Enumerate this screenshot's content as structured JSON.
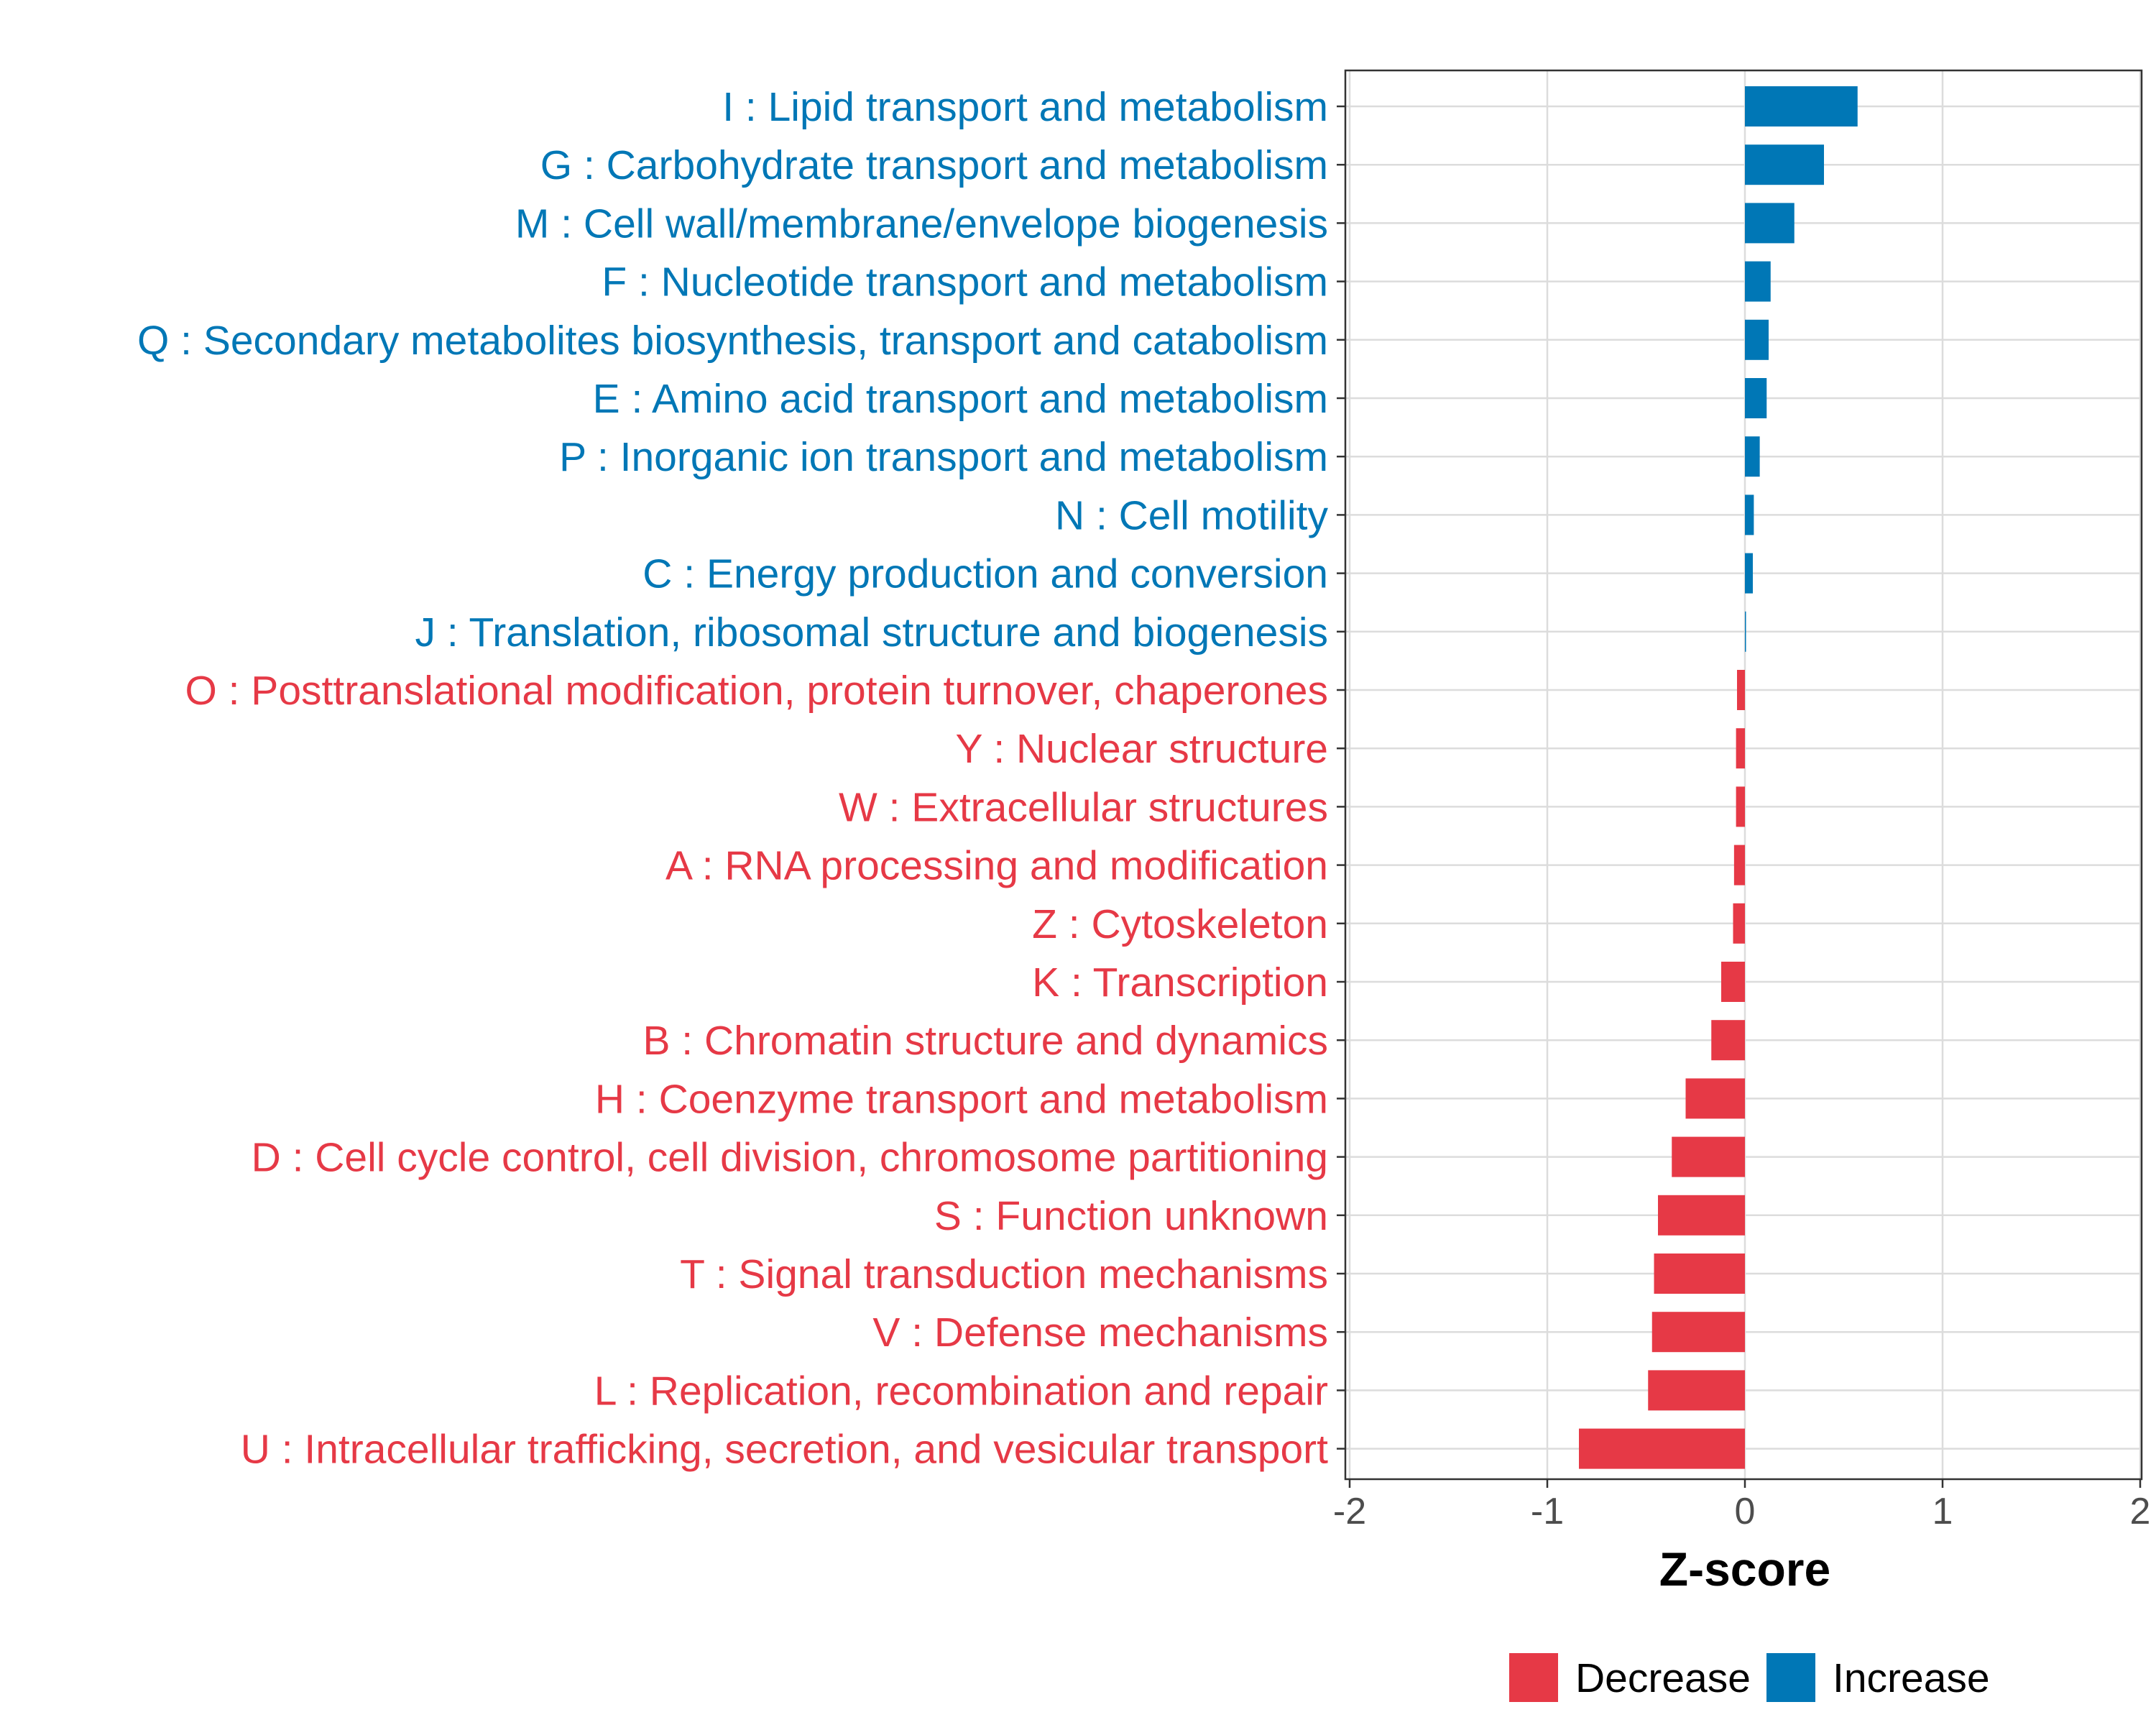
{
  "chart_data": {
    "type": "bar",
    "orientation": "horizontal",
    "xlabel": "Z-score",
    "ylabel": "",
    "xlim": [
      -2,
      2
    ],
    "xticks": [
      -2,
      -1,
      0,
      1,
      2
    ],
    "xtick_labels": [
      "-2",
      "-1",
      "0",
      "1",
      "2"
    ],
    "grid": true,
    "legend_position": "bottom",
    "colors": {
      "Decrease": "#E63946",
      "Increase": "#0077B6"
    },
    "legend": [
      {
        "label": "Decrease",
        "color": "#E63946"
      },
      {
        "label": "Increase",
        "color": "#0077B6"
      }
    ],
    "categories": [
      {
        "label": "I : Lipid transport and metabolism",
        "value": 0.57,
        "group": "Increase"
      },
      {
        "label": "G : Carbohydrate transport and metabolism",
        "value": 0.4,
        "group": "Increase"
      },
      {
        "label": "M : Cell wall/membrane/envelope biogenesis",
        "value": 0.25,
        "group": "Increase"
      },
      {
        "label": "F : Nucleotide transport and metabolism",
        "value": 0.13,
        "group": "Increase"
      },
      {
        "label": "Q : Secondary metabolites biosynthesis, transport and catabolism",
        "value": 0.12,
        "group": "Increase"
      },
      {
        "label": "E : Amino acid transport and metabolism",
        "value": 0.11,
        "group": "Increase"
      },
      {
        "label": "P : Inorganic ion transport and metabolism",
        "value": 0.075,
        "group": "Increase"
      },
      {
        "label": "N : Cell motility",
        "value": 0.045,
        "group": "Increase"
      },
      {
        "label": "C : Energy production and conversion",
        "value": 0.04,
        "group": "Increase"
      },
      {
        "label": "J : Translation, ribosomal structure and biogenesis",
        "value": 0.005,
        "group": "Increase"
      },
      {
        "label": "O : Posttranslational modification, protein turnover, chaperones",
        "value": -0.04,
        "group": "Decrease"
      },
      {
        "label": "Y : Nuclear structure",
        "value": -0.045,
        "group": "Decrease"
      },
      {
        "label": "W : Extracellular structures",
        "value": -0.045,
        "group": "Decrease"
      },
      {
        "label": "A : RNA processing and modification",
        "value": -0.055,
        "group": "Decrease"
      },
      {
        "label": "Z : Cytoskeleton",
        "value": -0.06,
        "group": "Decrease"
      },
      {
        "label": "K : Transcription",
        "value": -0.12,
        "group": "Decrease"
      },
      {
        "label": "B : Chromatin structure and dynamics",
        "value": -0.17,
        "group": "Decrease"
      },
      {
        "label": "H : Coenzyme transport and metabolism",
        "value": -0.3,
        "group": "Decrease"
      },
      {
        "label": "D : Cell cycle control, cell division, chromosome partitioning",
        "value": -0.37,
        "group": "Decrease"
      },
      {
        "label": "S : Function unknown",
        "value": -0.44,
        "group": "Decrease"
      },
      {
        "label": "T : Signal transduction mechanisms",
        "value": -0.46,
        "group": "Decrease"
      },
      {
        "label": "V : Defense mechanisms",
        "value": -0.47,
        "group": "Decrease"
      },
      {
        "label": "L : Replication, recombination and repair",
        "value": -0.49,
        "group": "Decrease"
      },
      {
        "label": "U : Intracellular trafficking, secretion, and vesicular transport",
        "value": -0.84,
        "group": "Decrease"
      }
    ]
  }
}
